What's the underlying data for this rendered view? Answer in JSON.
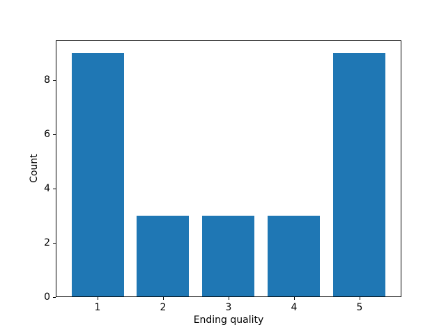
{
  "figure": {
    "background": "#ffffff"
  },
  "chart_data": {
    "type": "bar",
    "x": [
      1,
      2,
      3,
      4,
      5
    ],
    "categories": [
      "1",
      "2",
      "3",
      "4",
      "5"
    ],
    "values": [
      9,
      3,
      3,
      3,
      9
    ],
    "title": "",
    "xlabel": "Ending quality",
    "ylabel": "Count",
    "xlim": [
      0.36,
      5.64
    ],
    "ylim": [
      0,
      9.45
    ],
    "yticks": [
      0,
      2,
      4,
      6,
      8
    ],
    "ytick_labels": [
      "0",
      "2",
      "4",
      "6",
      "8"
    ],
    "bar_width": 0.8,
    "bar_color": "#1f77b4",
    "axis_color": "#000000",
    "text_color": "#000000",
    "grid": false,
    "legend": false
  }
}
